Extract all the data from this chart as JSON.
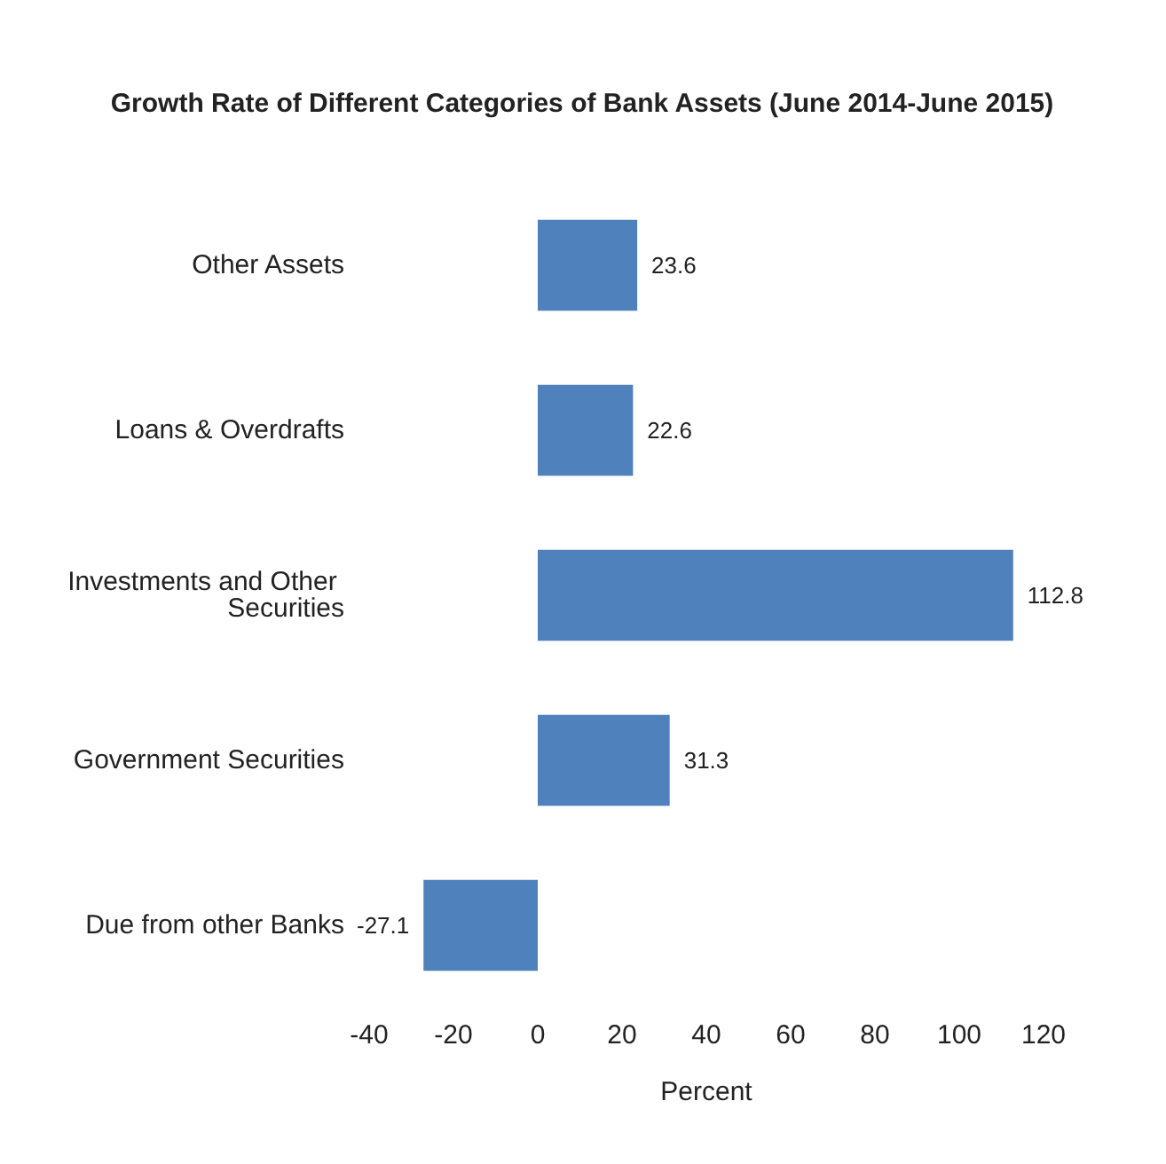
{
  "chart_data": {
    "type": "bar",
    "orientation": "horizontal",
    "title": "Growth Rate of Different Categories of Bank Assets (June 2014-June 2015)",
    "xlabel": "Percent",
    "categories": [
      "Other Assets",
      "Loans & Overdrafts",
      "Investments and Other Securities",
      "Government Securities",
      "Due from other Banks"
    ],
    "values": [
      23.6,
      22.6,
      112.8,
      31.3,
      -27.1
    ],
    "color": "#4f81bd",
    "xlim": [
      -40,
      120
    ],
    "xticks": [
      -40,
      -20,
      0,
      20,
      40,
      60,
      80,
      100,
      120
    ],
    "grid": false,
    "data_labels": true
  }
}
